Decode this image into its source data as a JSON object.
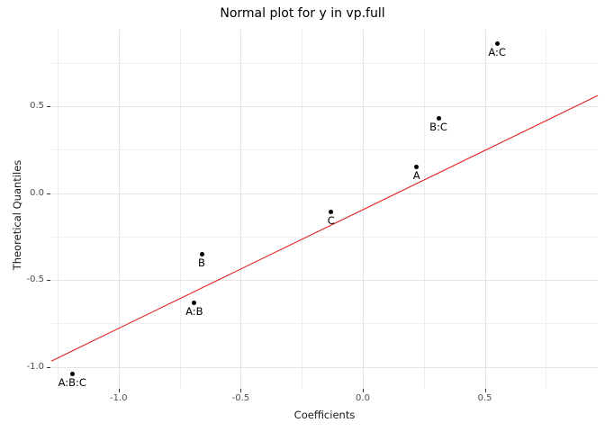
{
  "chart_data": {
    "type": "scatter",
    "title": "Normal plot for y in vp.full",
    "xlabel": "Coefficients",
    "ylabel": "Theoretical Quantiles",
    "x_axis": {
      "range": [
        -1.276,
        0.962
      ],
      "major_ticks": [
        {
          "value": -1.0,
          "label": "-1.0"
        },
        {
          "value": -0.5,
          "label": "-0.5"
        },
        {
          "value": 0.0,
          "label": "0.0"
        },
        {
          "value": 0.5,
          "label": "0.5"
        }
      ],
      "minor_ticks": [
        -1.25,
        -0.75,
        -0.25,
        0.25,
        0.75
      ],
      "grid": true
    },
    "y_axis": {
      "range": [
        -1.132,
        0.94
      ],
      "major_ticks": [
        {
          "value": 0.5,
          "label": "0.5"
        },
        {
          "value": 0.0,
          "label": "0.0"
        },
        {
          "value": -0.5,
          "label": "-0.5"
        },
        {
          "value": -1.0,
          "label": "-1.0"
        }
      ],
      "minor_ticks": [
        0.75,
        0.25,
        -0.25,
        -0.75
      ],
      "grid": true
    },
    "points": [
      {
        "label": "A:B:C",
        "x": -1.19,
        "y": -1.04
      },
      {
        "label": "A:B",
        "x": -0.69,
        "y": -0.63
      },
      {
        "label": "B",
        "x": -0.66,
        "y": -0.35
      },
      {
        "label": "C",
        "x": -0.13,
        "y": -0.11
      },
      {
        "label": "A",
        "x": 0.22,
        "y": 0.15
      },
      {
        "label": "B:C",
        "x": 0.31,
        "y": 0.43
      },
      {
        "label": "A:C",
        "x": 0.55,
        "y": 0.86
      }
    ],
    "ref_line": {
      "intercept": -0.096,
      "slope": 0.683
    },
    "colors": {
      "point": "#000000",
      "ref_line": "#e02020",
      "grid_major": "#e4e4e4",
      "grid_minor": "#efefef",
      "tick": "#333333",
      "tick_label": "#4d4d4d"
    },
    "legend": "none"
  }
}
